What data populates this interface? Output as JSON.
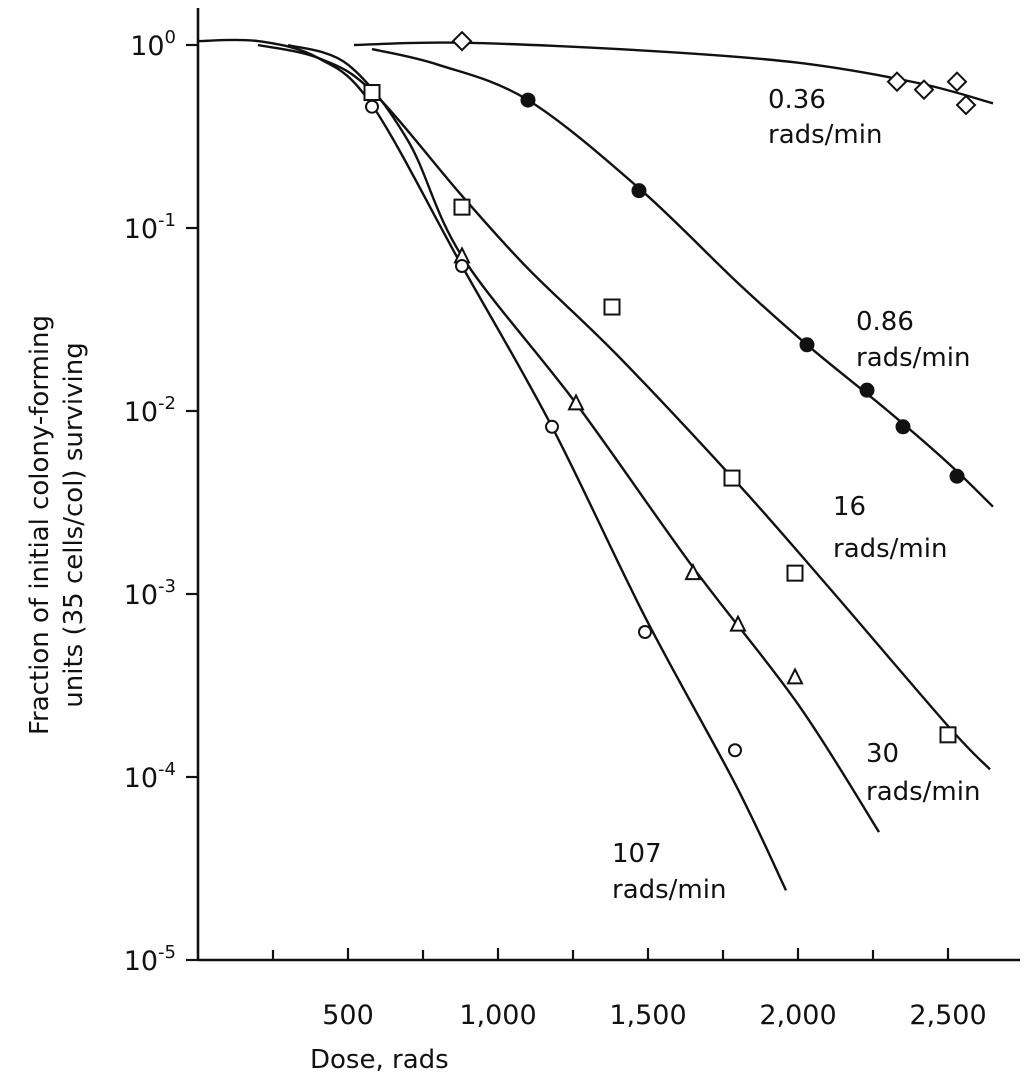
{
  "chart_data": {
    "type": "scatter",
    "x_label": "Dose, rads",
    "y_label_line1": "Fraction of initial colony-forming",
    "y_label_line2": "units (35 cells/col) surviving",
    "y_scale": "log",
    "xlim": [
      0,
      2600
    ],
    "ylim": [
      1e-05,
      1.6
    ],
    "x_ticks": [
      {
        "value": 500,
        "label": "500"
      },
      {
        "value": 1000,
        "label": "1,000"
      },
      {
        "value": 1500,
        "label": "1,500"
      },
      {
        "value": 2000,
        "label": "2,000"
      },
      {
        "value": 2500,
        "label": "2,500"
      }
    ],
    "x_minor_ticks": [
      250,
      750,
      1250,
      1750,
      2250
    ],
    "y_ticks": [
      {
        "exp": 0,
        "value": 1,
        "base": "10",
        "sup": "0"
      },
      {
        "exp": -1,
        "value": 0.1,
        "base": "10",
        "sup": "-1"
      },
      {
        "exp": -2,
        "value": 0.01,
        "base": "10",
        "sup": "-2"
      },
      {
        "exp": -3,
        "value": 0.001,
        "base": "10",
        "sup": "-3"
      },
      {
        "exp": -4,
        "value": 0.0001,
        "base": "10",
        "sup": "-4"
      },
      {
        "exp": -5,
        "value": 1e-05,
        "base": "10",
        "sup": "-5"
      }
    ],
    "series": [
      {
        "name_line1": "0.36",
        "name_line2": "rads/min",
        "marker": "diamond",
        "points": [
          [
            880,
            1.05
          ],
          [
            2330,
            0.63
          ],
          [
            2420,
            0.57
          ],
          [
            2530,
            0.63
          ],
          [
            2560,
            0.47
          ]
        ],
        "curve": [
          [
            520,
            1.0
          ],
          [
            880,
            1.03
          ],
          [
            1500,
            0.93
          ],
          [
            2000,
            0.8
          ],
          [
            2400,
            0.62
          ],
          [
            2650,
            0.48
          ]
        ]
      },
      {
        "name_line1": "0.86",
        "name_line2": "rads/min",
        "marker": "filled-circle",
        "points": [
          [
            1100,
            0.5
          ],
          [
            1470,
            0.16
          ],
          [
            2030,
            0.023
          ],
          [
            2230,
            0.013
          ],
          [
            2350,
            0.0082
          ],
          [
            2530,
            0.0044
          ]
        ],
        "curve": [
          [
            580,
            0.95
          ],
          [
            800,
            0.78
          ],
          [
            1100,
            0.5
          ],
          [
            1470,
            0.165
          ],
          [
            1800,
            0.05
          ],
          [
            2030,
            0.023
          ],
          [
            2300,
            0.01
          ],
          [
            2500,
            0.0052
          ],
          [
            2650,
            0.003
          ]
        ]
      },
      {
        "name_line1": "16",
        "name_line2": "rads/min",
        "marker": "square",
        "points": [
          [
            580,
            0.55
          ],
          [
            880,
            0.13
          ],
          [
            1380,
            0.037
          ],
          [
            1780,
            0.0043
          ],
          [
            1990,
            0.0013
          ],
          [
            2500,
            0.00017
          ]
        ],
        "curve": [
          [
            200,
            1.0
          ],
          [
            400,
            0.85
          ],
          [
            580,
            0.56
          ],
          [
            880,
            0.15
          ],
          [
            1100,
            0.06
          ],
          [
            1400,
            0.02
          ],
          [
            1800,
            0.004
          ],
          [
            2100,
            0.0011
          ],
          [
            2500,
            0.00019
          ],
          [
            2640,
            0.00011
          ]
        ]
      },
      {
        "name_line1": "30",
        "name_line2": "rads/min",
        "marker": "triangle",
        "points": [
          [
            880,
            0.07
          ],
          [
            1260,
            0.011
          ],
          [
            1650,
            0.0013
          ],
          [
            1800,
            0.00068
          ],
          [
            1990,
            0.00035
          ]
        ],
        "curve": [
          [
            300,
            1.0
          ],
          [
            500,
            0.78
          ],
          [
            700,
            0.3
          ],
          [
            880,
            0.07
          ],
          [
            1260,
            0.011
          ],
          [
            1650,
            0.0014
          ],
          [
            2000,
            0.00025
          ],
          [
            2270,
            5e-05
          ]
        ]
      },
      {
        "name_line1": "107",
        "name_line2": "rads/min",
        "marker": "open-circle",
        "points": [
          [
            580,
            0.46
          ],
          [
            880,
            0.062
          ],
          [
            1180,
            0.0082
          ],
          [
            1490,
            0.00062
          ],
          [
            1790,
            0.00014
          ]
        ],
        "curve": [
          [
            0,
            1.05
          ],
          [
            200,
            1.05
          ],
          [
            400,
            0.85
          ],
          [
            580,
            0.47
          ],
          [
            880,
            0.062
          ],
          [
            1180,
            0.0082
          ],
          [
            1490,
            0.00075
          ],
          [
            1790,
            9.2e-05
          ],
          [
            1960,
            2.4e-05
          ]
        ]
      }
    ]
  }
}
